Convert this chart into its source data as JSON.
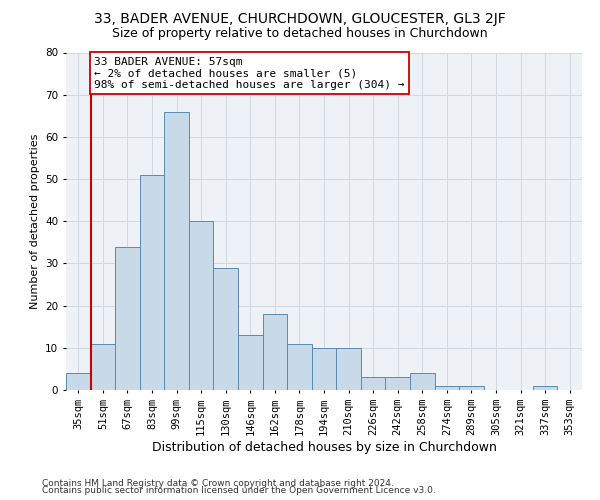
{
  "title_line1": "33, BADER AVENUE, CHURCHDOWN, GLOUCESTER, GL3 2JF",
  "title_line2": "Size of property relative to detached houses in Churchdown",
  "xlabel": "Distribution of detached houses by size in Churchdown",
  "ylabel": "Number of detached properties",
  "categories": [
    "35sqm",
    "51sqm",
    "67sqm",
    "83sqm",
    "99sqm",
    "115sqm",
    "130sqm",
    "146sqm",
    "162sqm",
    "178sqm",
    "194sqm",
    "210sqm",
    "226sqm",
    "242sqm",
    "258sqm",
    "274sqm",
    "289sqm",
    "305sqm",
    "321sqm",
    "337sqm",
    "353sqm"
  ],
  "values": [
    4,
    11,
    34,
    51,
    66,
    40,
    29,
    13,
    18,
    11,
    10,
    10,
    3,
    3,
    4,
    1,
    1,
    0,
    0,
    1,
    0
  ],
  "bar_color": "#c8d9e8",
  "bar_edge_color": "#5a8ab0",
  "bar_width": 1.0,
  "vline_x_index": 1,
  "vline_color": "#cc0000",
  "annotation_line1": "33 BADER AVENUE: 57sqm",
  "annotation_line2": "← 2% of detached houses are smaller (5)",
  "annotation_line3": "98% of semi-detached houses are larger (304) →",
  "annotation_box_color": "white",
  "annotation_box_edge_color": "#cc0000",
  "ylim": [
    0,
    80
  ],
  "yticks": [
    0,
    10,
    20,
    30,
    40,
    50,
    60,
    70,
    80
  ],
  "grid_color": "#d0d8e0",
  "footer_line1": "Contains HM Land Registry data © Crown copyright and database right 2024.",
  "footer_line2": "Contains public sector information licensed under the Open Government Licence v3.0.",
  "bg_color": "#eef2f7",
  "title1_fontsize": 10,
  "title2_fontsize": 9,
  "xlabel_fontsize": 9,
  "ylabel_fontsize": 8,
  "tick_fontsize": 7.5,
  "annotation_fontsize": 8,
  "footer_fontsize": 6.5
}
